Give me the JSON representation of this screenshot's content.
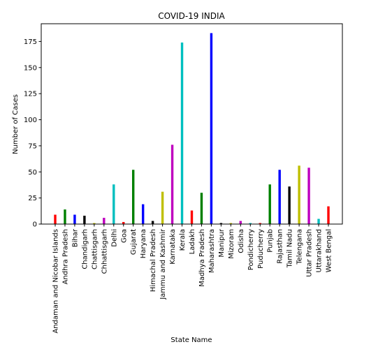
{
  "chart_data": {
    "type": "bar",
    "title": "COVID-19 INDIA",
    "xlabel": "State Name",
    "ylabel": "Number of Cases",
    "ylim": [
      0,
      192
    ],
    "yticks": [
      "0",
      "25",
      "50",
      "75",
      "100",
      "125",
      "150",
      "175"
    ],
    "grid": false,
    "legend": "none",
    "color_cycle": [
      "#ff0000",
      "#008000",
      "#0000ff",
      "#000000",
      "#bfbf00",
      "#bf00bf",
      "#00bfbf"
    ],
    "categories": [
      "Andaman and Nicobar Islands",
      "Andhra Pradesh",
      "Bihar",
      "Chandigarh",
      "Chattisgarh",
      "Chhattisgarh",
      "Delhi",
      "Goa",
      "Gujarat",
      "Haryana",
      "Himachal Pradesh",
      "Jammu and Kashmir",
      "Karnataka",
      "Kerala",
      "Ladakh",
      "Madhya Pradesh",
      "Maharashtra",
      "Manipur",
      "Mizoram",
      "Odisha",
      "Pondicherry",
      "Puducherry",
      "Punjab",
      "Rajasthan",
      "Tamil Nadu",
      "Telengana",
      "Uttar Pradesh",
      "Uttarakhand",
      "West Bengal"
    ],
    "values": [
      9,
      14,
      9,
      8,
      1,
      6,
      38,
      2,
      52,
      19,
      3,
      31,
      76,
      174,
      13,
      30,
      183,
      1,
      1,
      3,
      1,
      1,
      38,
      52,
      36,
      56,
      54,
      5,
      17
    ]
  }
}
